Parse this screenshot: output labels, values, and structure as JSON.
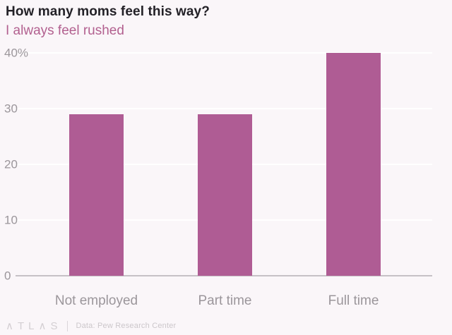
{
  "header": {
    "title": "How many moms feel this way?",
    "subtitle": "I always feel rushed"
  },
  "chart_data": {
    "type": "bar",
    "title": "How many moms feel this way?",
    "subtitle": "I always feel rushed",
    "categories": [
      "Not employed",
      "Part time",
      "Full time"
    ],
    "values": [
      29,
      29,
      40
    ],
    "xlabel": "",
    "ylabel": "",
    "ylim": [
      0,
      40
    ],
    "yticks": [
      0,
      10,
      20,
      30,
      40
    ],
    "ytick_labels": [
      "0",
      "10",
      "20",
      "30",
      "40%"
    ],
    "grid": true,
    "legend": false,
    "colors": {
      "bar": "#af5c94",
      "background": "#faf6f9",
      "gridline": "#ffffff",
      "axis_line": "#c6c1c6",
      "tick_label": "#9b969b"
    }
  },
  "footer": {
    "logo": "∧TL∧S",
    "source": "Data: Pew Research Center"
  }
}
